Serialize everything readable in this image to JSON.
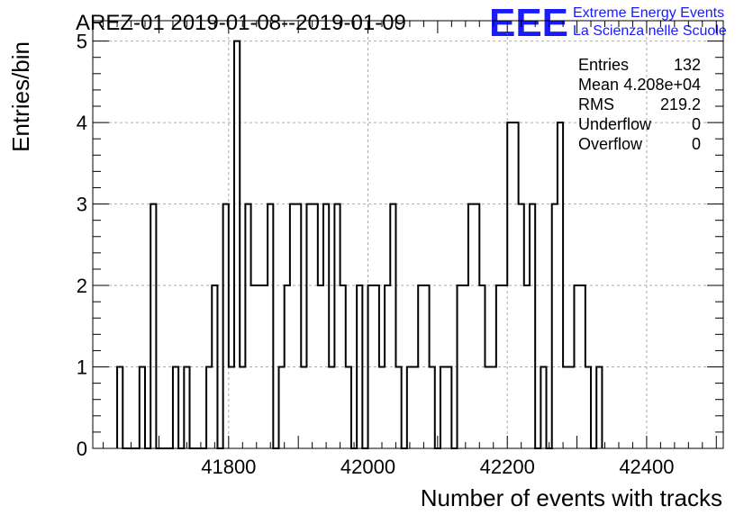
{
  "logo": {
    "mark": "EEE",
    "line1": "Extreme Energy Events",
    "line2": "La Scienza nelle Scuole",
    "color": "#1a1aff"
  },
  "chart_data": {
    "type": "histogram",
    "title": "AREZ-01 2019-01-08--2019-01-09",
    "xlabel": "Number of events with tracks",
    "ylabel": "Entries/bin",
    "xlim": [
      41605,
      42510
    ],
    "ylim": [
      0,
      5.25
    ],
    "bin_width": 8,
    "x_ticks": [
      41800,
      42000,
      42200,
      42400
    ],
    "y_ticks": [
      0,
      1,
      2,
      3,
      4,
      5
    ],
    "grid": true,
    "bins": [
      [
        41640,
        1
      ],
      [
        41648,
        0
      ],
      [
        41656,
        0
      ],
      [
        41664,
        0
      ],
      [
        41672,
        1
      ],
      [
        41680,
        0
      ],
      [
        41688,
        3
      ],
      [
        41696,
        0
      ],
      [
        41704,
        0
      ],
      [
        41712,
        0
      ],
      [
        41720,
        1
      ],
      [
        41728,
        0
      ],
      [
        41736,
        1
      ],
      [
        41744,
        0
      ],
      [
        41752,
        0
      ],
      [
        41760,
        0
      ],
      [
        41768,
        1
      ],
      [
        41776,
        2
      ],
      [
        41784,
        0
      ],
      [
        41792,
        3
      ],
      [
        41800,
        1
      ],
      [
        41808,
        5
      ],
      [
        41816,
        1
      ],
      [
        41824,
        3
      ],
      [
        41832,
        2
      ],
      [
        41840,
        2
      ],
      [
        41848,
        2
      ],
      [
        41856,
        3
      ],
      [
        41864,
        0
      ],
      [
        41872,
        1
      ],
      [
        41880,
        2
      ],
      [
        41888,
        3
      ],
      [
        41896,
        3
      ],
      [
        41904,
        1
      ],
      [
        41912,
        3
      ],
      [
        41920,
        3
      ],
      [
        41928,
        2
      ],
      [
        41936,
        3
      ],
      [
        41944,
        1
      ],
      [
        41952,
        3
      ],
      [
        41960,
        2
      ],
      [
        41968,
        1
      ],
      [
        41976,
        0
      ],
      [
        41984,
        2
      ],
      [
        41992,
        0
      ],
      [
        42000,
        2
      ],
      [
        42008,
        2
      ],
      [
        42016,
        1
      ],
      [
        42024,
        2
      ],
      [
        42032,
        3
      ],
      [
        42040,
        1
      ],
      [
        42048,
        0
      ],
      [
        42056,
        1
      ],
      [
        42064,
        1
      ],
      [
        42072,
        2
      ],
      [
        42080,
        2
      ],
      [
        42088,
        1
      ],
      [
        42096,
        0
      ],
      [
        42104,
        1
      ],
      [
        42112,
        1
      ],
      [
        42120,
        0
      ],
      [
        42128,
        2
      ],
      [
        42136,
        2
      ],
      [
        42144,
        3
      ],
      [
        42152,
        3
      ],
      [
        42160,
        2
      ],
      [
        42168,
        1
      ],
      [
        42176,
        1
      ],
      [
        42184,
        2
      ],
      [
        42192,
        2
      ],
      [
        42200,
        4
      ],
      [
        42208,
        4
      ],
      [
        42216,
        3
      ],
      [
        42224,
        2
      ],
      [
        42232,
        3
      ],
      [
        42240,
        0
      ],
      [
        42248,
        1
      ],
      [
        42256,
        0
      ],
      [
        42264,
        3
      ],
      [
        42272,
        4
      ],
      [
        42280,
        1
      ],
      [
        42288,
        1
      ],
      [
        42296,
        2
      ],
      [
        42304,
        2
      ],
      [
        42312,
        1
      ],
      [
        42320,
        0
      ],
      [
        42328,
        1
      ]
    ],
    "stats": [
      {
        "label": "Entries",
        "value": "132"
      },
      {
        "label": "Mean",
        "value": "4.208e+04"
      },
      {
        "label": "RMS",
        "value": "219.2"
      },
      {
        "label": "Underflow",
        "value": "0"
      },
      {
        "label": "Overflow",
        "value": "0"
      }
    ]
  }
}
